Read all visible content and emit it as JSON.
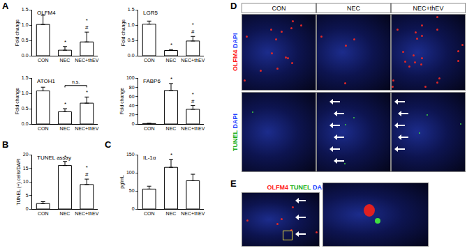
{
  "panel_labels": [
    "A",
    "B",
    "C",
    "D",
    "E"
  ],
  "chart_data": [
    {
      "type": "bar",
      "title": "OLFM4",
      "y_label": "Fold change",
      "categories": [
        "CON",
        "NEC",
        "NEC+thEV"
      ],
      "values": [
        1.02,
        0.18,
        0.45
      ],
      "error": [
        0.3,
        0.12,
        0.32
      ],
      "color": "#ffffff",
      "ylim": [
        0,
        1.5
      ],
      "yticks": [
        {
          "value": 0,
          "label": "0.0"
        },
        {
          "value": 0.5,
          "label": "0.5"
        },
        {
          "value": 1,
          "label": "1.0"
        },
        {
          "value": 1.5,
          "label": "1.5"
        }
      ],
      "annotations": [
        {
          "category": "NEC",
          "text": [
            "*"
          ]
        },
        {
          "category": "NEC+thEV",
          "text": [
            "*",
            "#"
          ]
        }
      ]
    },
    {
      "type": "bar",
      "title": "LGR5",
      "y_label": "Fold change",
      "categories": [
        "CON",
        "NEC",
        "NEC+thEV"
      ],
      "values": [
        1.03,
        0.17,
        0.48
      ],
      "error": [
        0.1,
        0.03,
        0.15
      ],
      "color": "#ffffff",
      "ylim": [
        0,
        1.5
      ],
      "yticks": [
        {
          "value": 0,
          "label": "0.0"
        },
        {
          "value": 0.5,
          "label": "0.5"
        },
        {
          "value": 1,
          "label": "1.0"
        },
        {
          "value": 1.5,
          "label": "1.5"
        }
      ],
      "annotations": [
        {
          "category": "NEC",
          "text": [
            "*"
          ]
        },
        {
          "category": "NEC+thEV",
          "text": [
            "*",
            "#"
          ]
        }
      ]
    },
    {
      "type": "bar",
      "title": "ATOH1",
      "y_label": "Fold change",
      "categories": [
        "CON",
        "NEC",
        "NEC+thEV"
      ],
      "values": [
        1.08,
        0.4,
        0.68
      ],
      "error": [
        0.12,
        0.1,
        0.2
      ],
      "color": "#ffffff",
      "ylim": [
        0,
        1.5
      ],
      "yticks": [
        {
          "value": 0,
          "label": "0.0"
        },
        {
          "value": 0.5,
          "label": "0.5"
        },
        {
          "value": 1,
          "label": "1.0"
        },
        {
          "value": 1.5,
          "label": "1.5"
        }
      ],
      "annotations": [
        {
          "category": "NEC",
          "text": [
            "*"
          ]
        },
        {
          "category": "NEC+thEV",
          "text": [
            "*"
          ]
        }
      ],
      "brackets": [
        {
          "from": "NEC",
          "to": "NEC+thEV",
          "text": "n.s."
        }
      ]
    },
    {
      "type": "bar",
      "title": "FABP6",
      "y_label": "Fold change",
      "categories": [
        "CON",
        "NEC",
        "NEC+thEV"
      ],
      "values": [
        1,
        73,
        32
      ],
      "error": [
        0.5,
        15,
        8
      ],
      "color": "#ffffff",
      "ylim": [
        0,
        100
      ],
      "yticks": [
        0,
        20,
        40,
        60,
        80,
        100
      ],
      "annotations": [
        {
          "category": "NEC",
          "text": [
            "*"
          ]
        },
        {
          "category": "NEC+thEV",
          "text": [
            "*",
            "#"
          ]
        }
      ]
    },
    {
      "type": "bar",
      "title": "TUNEL assay",
      "y_label": "TUNEL (+) cells/DAPI",
      "categories": [
        "CON",
        "NEC",
        "NEC+thEV"
      ],
      "values": [
        2,
        16,
        9
      ],
      "error": [
        0.7,
        1.5,
        2
      ],
      "color": "#ffffff",
      "ylim": [
        0,
        20
      ],
      "yticks": [
        0,
        5,
        10,
        15,
        20
      ],
      "annotations": [
        {
          "category": "NEC",
          "text": [
            "*"
          ]
        },
        {
          "category": "NEC+thEV",
          "text": [
            "*",
            "#"
          ]
        }
      ]
    },
    {
      "type": "bar",
      "title": "IL-1α",
      "y_label": "pg/mL",
      "categories": [
        "CON",
        "NEC",
        "NEC+thEV"
      ],
      "values": [
        55,
        115,
        78
      ],
      "error": [
        8,
        22,
        18
      ],
      "color": "#ffffff",
      "ylim": [
        0,
        150
      ],
      "yticks": [
        0,
        50,
        100,
        150
      ],
      "annotations": [
        {
          "category": "NEC",
          "text": [
            "*"
          ]
        }
      ]
    }
  ],
  "micrographs": {
    "columns": [
      "CON",
      "NEC",
      "NEC+thEV"
    ],
    "rows": [
      [
        {
          "text": "OLFM4",
          "color": "#ff2020"
        },
        {
          "text": "DAPI",
          "color": "#2040ff"
        }
      ],
      [
        {
          "text": "TUNEL",
          "color": "#20b020"
        },
        {
          "text": "DAPI",
          "color": "#2040ff"
        }
      ]
    ],
    "inset_label": [
      {
        "text": "OLFM4",
        "color": "#ff2020"
      },
      {
        "text": "TUNEL",
        "color": "#20b020"
      },
      {
        "text": "DAPI",
        "color": "#2040ff"
      }
    ]
  }
}
